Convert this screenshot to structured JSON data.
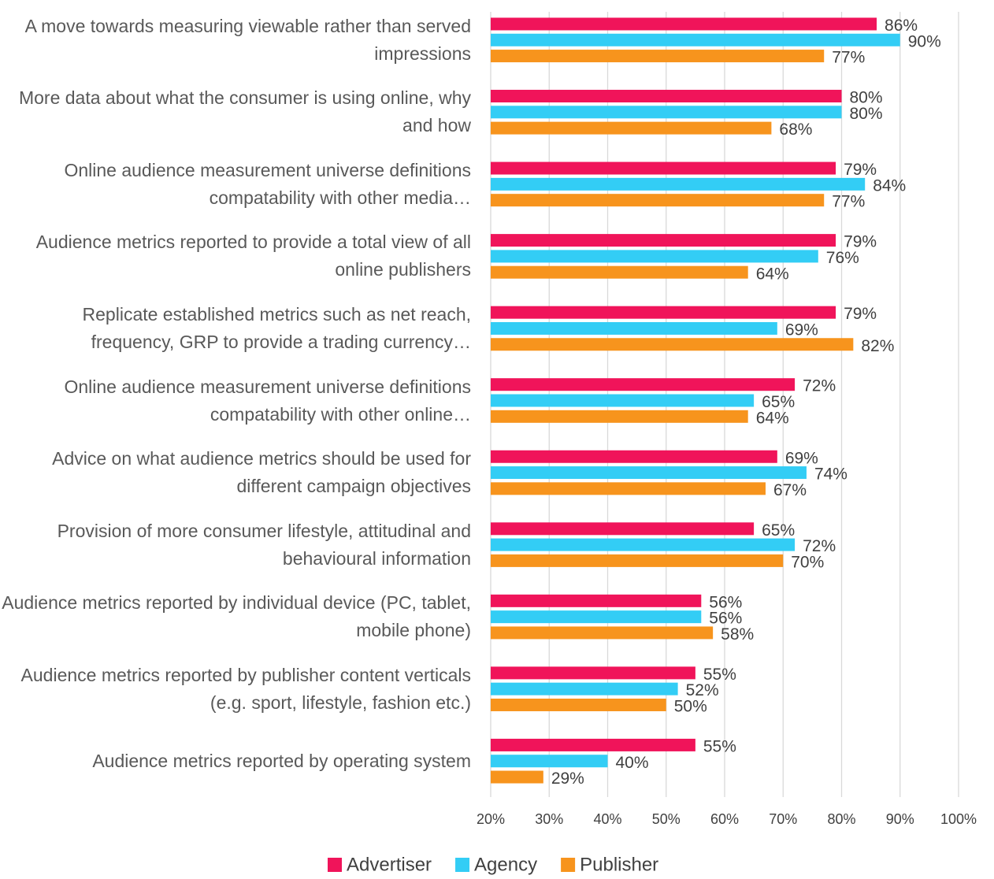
{
  "chart_data": {
    "type": "bar",
    "orientation": "horizontal",
    "categories": [
      "A move towards measuring viewable rather than served impressions",
      "More data about what the consumer is using online, why and how",
      "Online audience measurement universe definitions compatability with other media…",
      "Audience metrics reported to provide a total view of all online publishers",
      "Replicate established metrics such as net reach, frequency, GRP to provide a trading currency…",
      "Online audience measurement universe definitions compatability with other online…",
      "Advice on what audience metrics should be used for different campaign objectives",
      "Provision of more consumer lifestyle, attitudinal and behavioural information",
      "Audience metrics reported by individual device (PC, tablet, mobile phone)",
      "Audience metrics reported by publisher content verticals (e.g. sport, lifestyle, fashion etc.)",
      "Audience metrics reported by operating system"
    ],
    "series": [
      {
        "name": "Advertiser",
        "color": "#f0145a",
        "values": [
          86,
          80,
          79,
          79,
          79,
          72,
          69,
          65,
          56,
          55,
          55
        ],
        "value_labels": [
          "86%",
          "80%",
          "79%",
          "79%",
          "79%",
          "72%",
          "69%",
          "65%",
          "56%",
          "55%",
          "55%"
        ]
      },
      {
        "name": "Agency",
        "color": "#33cdf5",
        "values": [
          90,
          80,
          84,
          76,
          69,
          65,
          74,
          72,
          56,
          52,
          40
        ],
        "value_labels": [
          "90%",
          "80%",
          "84%",
          "76%",
          "69%",
          "65%",
          "74%",
          "72%",
          "56%",
          "52%",
          "40%"
        ]
      },
      {
        "name": "Publisher",
        "color": "#f7941d",
        "values": [
          77,
          68,
          77,
          64,
          82,
          64,
          67,
          70,
          58,
          50,
          29
        ],
        "value_labels": [
          "77%",
          "68%",
          "77%",
          "64%",
          "82%",
          "64%",
          "67%",
          "70%",
          "58%",
          "50%",
          "29%"
        ]
      }
    ],
    "xlim": [
      20,
      100
    ],
    "xticks": [
      {
        "value": 20,
        "label": "20%"
      },
      {
        "value": 30,
        "label": "30%"
      },
      {
        "value": 40,
        "label": "40%"
      },
      {
        "value": 50,
        "label": "50%"
      },
      {
        "value": 60,
        "label": "60%"
      },
      {
        "value": 70,
        "label": "70%"
      },
      {
        "value": 80,
        "label": "80%"
      },
      {
        "value": 90,
        "label": "90%"
      },
      {
        "value": 100,
        "label": "100%"
      }
    ],
    "grid": true,
    "legend": "bottom"
  }
}
